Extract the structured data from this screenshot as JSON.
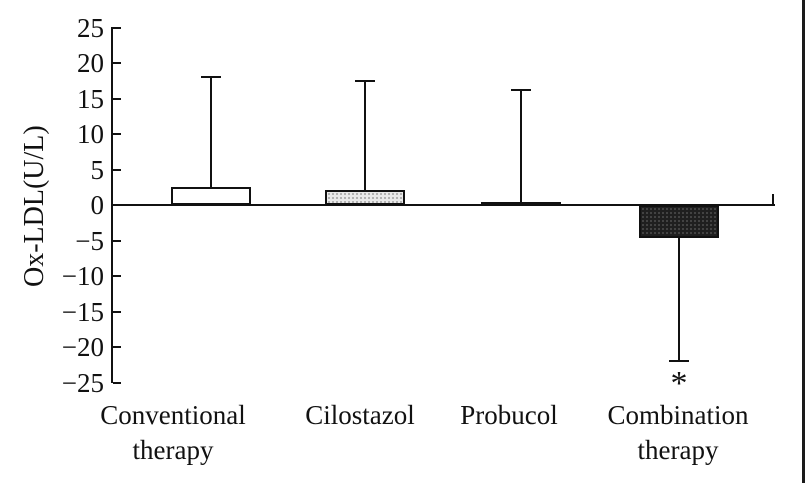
{
  "chart_data": {
    "type": "bar",
    "title": "",
    "ylabel": "Ox-LDL(U/L)",
    "xlabel": "",
    "ylim": [
      -25,
      25
    ],
    "grid": false,
    "legend": null,
    "categories": [
      "Conventional\ntherapy",
      "Cilostazol",
      "Probucol",
      "Combination\ntherapy"
    ],
    "values": [
      2.5,
      2.1,
      0.4,
      -4.7
    ],
    "error_ends": [
      18,
      17.5,
      16.2,
      -22
    ],
    "bar_fills": [
      "white",
      "light-stipple",
      "dark",
      "dark-stipple"
    ],
    "yticks": [
      25,
      20,
      15,
      10,
      5,
      0,
      -5,
      -10,
      -15,
      -20,
      -25
    ],
    "ytick_labels": [
      "25",
      "20",
      "15",
      "10",
      "5",
      "0",
      "−5",
      "−10",
      "−15",
      "−20",
      "−25"
    ],
    "annotations": [
      {
        "text": "*",
        "category_index": 3,
        "position": "below-error-bar"
      }
    ],
    "colors": {
      "axis": "#111111",
      "bar_border": "#111111",
      "light_fill": "#e9e9e9",
      "dark_fill": "#1f1f1f",
      "background": "#ffffff"
    }
  }
}
